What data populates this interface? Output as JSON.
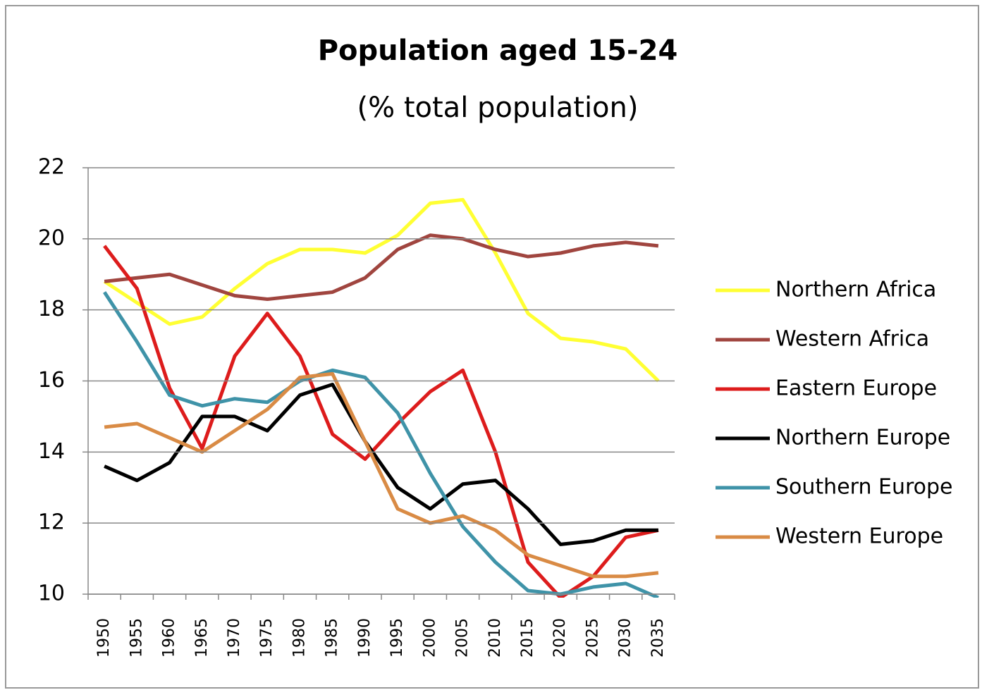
{
  "chart_data": {
    "type": "line",
    "title": "Population aged 15-24",
    "subtitle": "(% total population)",
    "categories": [
      "1950",
      "1955",
      "1960",
      "1965",
      "1970",
      "1975",
      "1980",
      "1985",
      "1990",
      "1995",
      "2000",
      "2005",
      "2010",
      "2015",
      "2020",
      "2025",
      "2030",
      "2035"
    ],
    "series": [
      {
        "name": "Northern Africa",
        "color": "#ffff33",
        "values": [
          18.8,
          18.2,
          17.6,
          17.8,
          18.6,
          19.3,
          19.7,
          19.7,
          19.6,
          20.1,
          21.0,
          21.1,
          19.6,
          17.9,
          17.2,
          17.1,
          16.9,
          16.0
        ]
      },
      {
        "name": "Western Africa",
        "color": "#a0453f",
        "values": [
          18.8,
          18.9,
          19.0,
          18.7,
          18.4,
          18.3,
          18.4,
          18.5,
          18.9,
          19.7,
          20.1,
          20.0,
          19.7,
          19.5,
          19.6,
          19.8,
          19.9,
          19.8
        ]
      },
      {
        "name": "Eastern Europe",
        "color": "#dd1c1c",
        "values": [
          19.8,
          18.6,
          15.8,
          14.1,
          16.7,
          17.9,
          16.7,
          14.5,
          13.8,
          14.8,
          15.7,
          16.3,
          14.0,
          10.9,
          9.9,
          10.5,
          11.6,
          11.8
        ]
      },
      {
        "name": "Northern Europe",
        "color": "#000000",
        "values": [
          13.6,
          13.2,
          13.7,
          15.0,
          15.0,
          14.6,
          15.6,
          15.9,
          14.3,
          13.0,
          12.4,
          13.1,
          13.2,
          12.4,
          11.4,
          11.5,
          11.8,
          11.8
        ]
      },
      {
        "name": "Southern Europe",
        "color": "#3f93a8",
        "values": [
          18.5,
          17.1,
          15.6,
          15.3,
          15.5,
          15.4,
          16.0,
          16.3,
          16.1,
          15.1,
          13.4,
          11.9,
          10.9,
          10.1,
          10.0,
          10.2,
          10.3,
          9.9
        ]
      },
      {
        "name": "Western Europe",
        "color": "#d98b45",
        "values": [
          14.7,
          14.8,
          14.4,
          14.0,
          14.6,
          15.2,
          16.1,
          16.2,
          14.3,
          12.4,
          12.0,
          12.2,
          11.8,
          11.1,
          10.8,
          10.5,
          10.5,
          10.6
        ]
      }
    ],
    "ylim": [
      10,
      22
    ],
    "yticks": [
      10,
      12,
      14,
      16,
      18,
      20,
      22
    ],
    "grid": true,
    "legend": "right"
  }
}
